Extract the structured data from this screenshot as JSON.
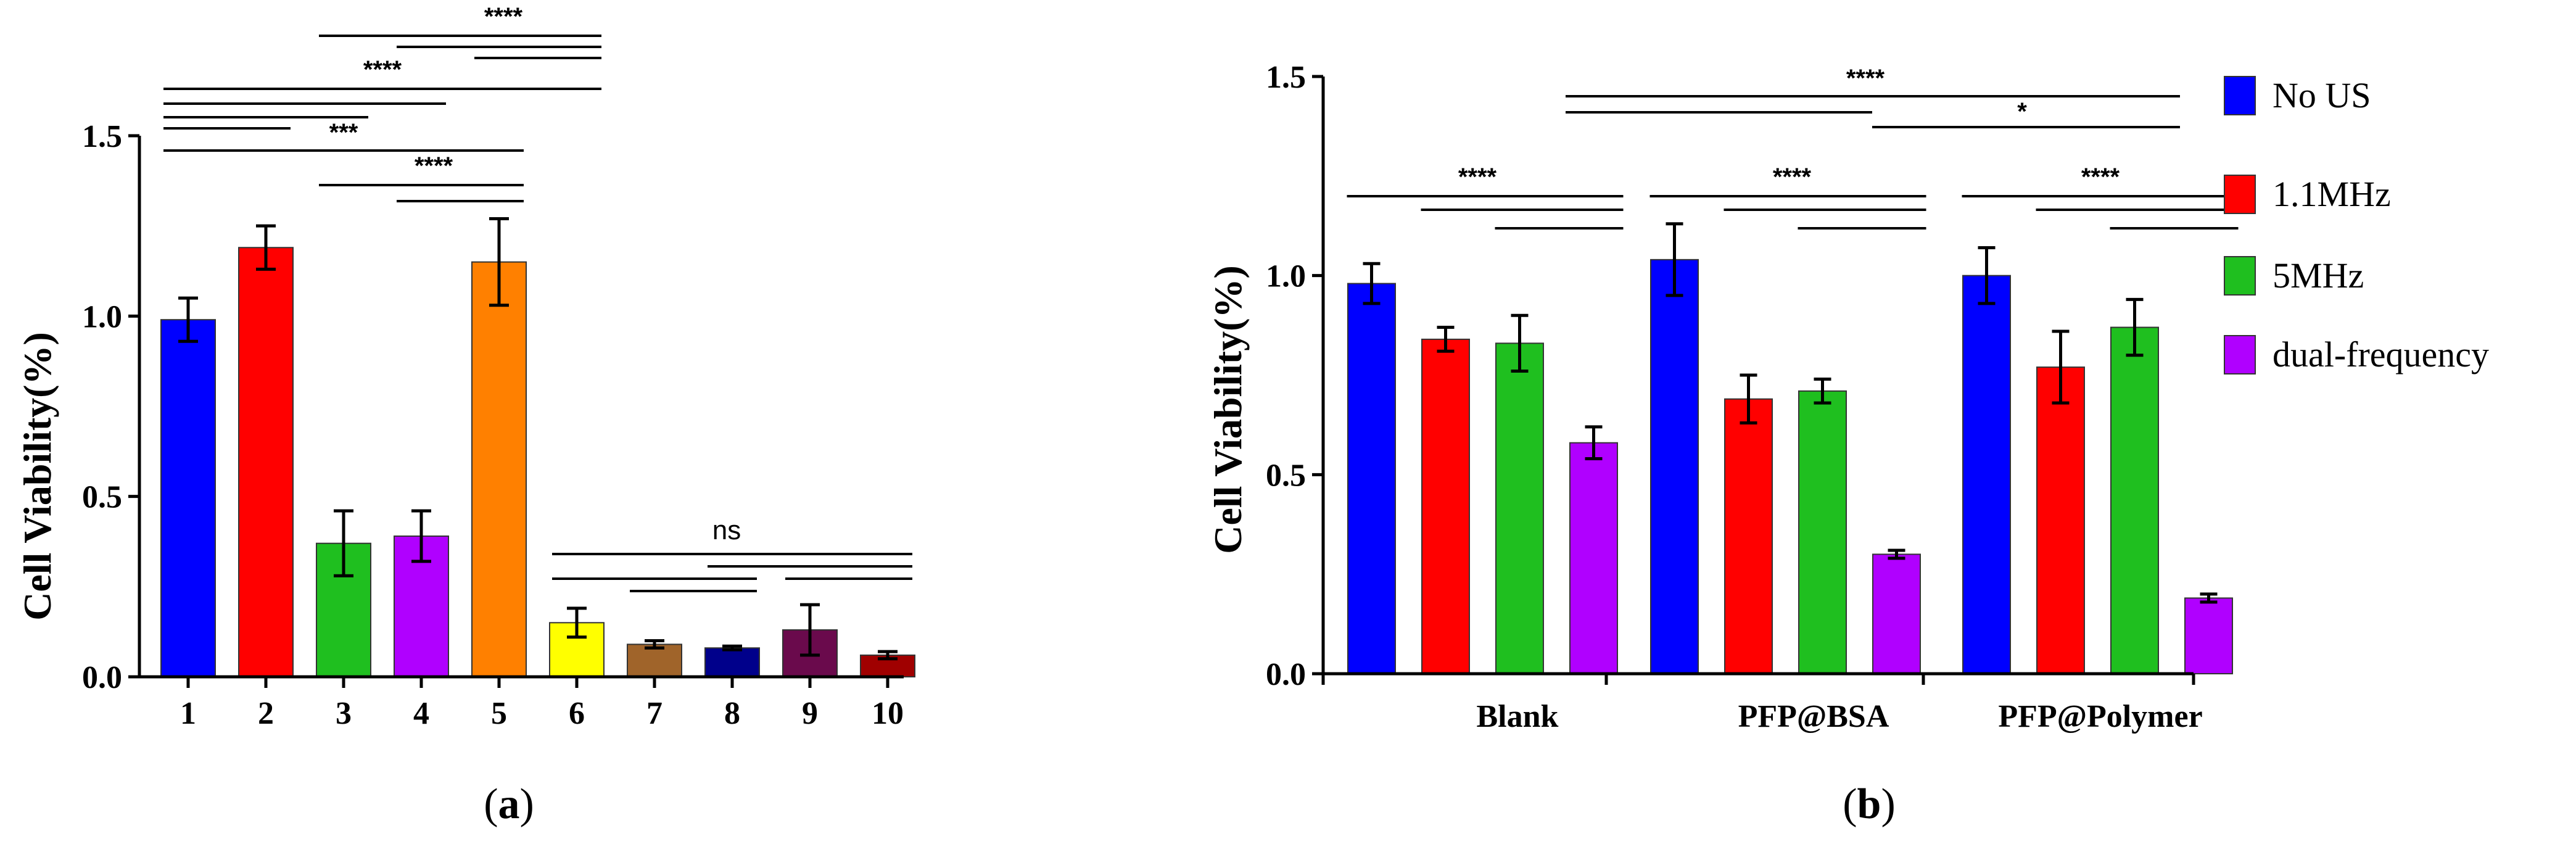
{
  "chart_data": [
    {
      "type": "bar",
      "panel": "a",
      "caption_letter": "a",
      "ylabel": "Cell Viability(%)",
      "xlabel": "",
      "ylim": [
        0,
        1.5
      ],
      "yticks": [
        0.0,
        0.5,
        1.0,
        1.5
      ],
      "ytick_labels": [
        "0.0",
        "0.5",
        "1.0",
        "1.5"
      ],
      "categories": [
        "1",
        "2",
        "3",
        "4",
        "5",
        "6",
        "7",
        "8",
        "9",
        "10"
      ],
      "values": [
        0.99,
        1.19,
        0.37,
        0.39,
        1.15,
        0.15,
        0.09,
        0.08,
        0.13,
        0.06
      ],
      "errors": [
        0.06,
        0.06,
        0.09,
        0.07,
        0.12,
        0.04,
        0.01,
        0.005,
        0.07,
        0.01
      ],
      "colors": [
        "#0000ff",
        "#ff0000",
        "#1fbf1f",
        "#b000ff",
        "#ff8000",
        "#ffff00",
        "#a0642a",
        "#00008b",
        "#6a0a4c",
        "#a00000"
      ],
      "significance": [
        {
          "label": "****",
          "brackets": [
            [
              3,
              6
            ],
            [
              4,
              6
            ],
            [
              5,
              6
            ]
          ]
        },
        {
          "label": "****",
          "brackets": [
            [
              1,
              6
            ],
            [
              1,
              4
            ],
            [
              1,
              3
            ],
            [
              1,
              2
            ]
          ]
        },
        {
          "label": "***",
          "brackets": [
            [
              1,
              5
            ]
          ]
        },
        {
          "label": "****",
          "brackets": [
            [
              3,
              5
            ],
            [
              4,
              5
            ]
          ]
        },
        {
          "label": "ns",
          "brackets": [
            [
              6,
              10
            ],
            [
              6,
              8
            ],
            [
              7,
              8
            ],
            [
              8,
              10
            ],
            [
              9,
              10
            ]
          ]
        }
      ]
    },
    {
      "type": "bar",
      "panel": "b",
      "caption_letter": "b",
      "ylabel": "Cell Viability(%)",
      "xlabel": "",
      "ylim": [
        0,
        1.5
      ],
      "yticks": [
        0.0,
        0.5,
        1.0,
        1.5
      ],
      "ytick_labels": [
        "0.0",
        "0.5",
        "1.0",
        "1.5"
      ],
      "categories": [
        "Blank",
        "PFP@BSA",
        "PFP@Polymer"
      ],
      "series": [
        {
          "name": "No US",
          "color": "#0000ff",
          "values": [
            0.98,
            1.04,
            1.0
          ],
          "errors": [
            0.05,
            0.09,
            0.07
          ]
        },
        {
          "name": "1.1MHz",
          "color": "#ff0000",
          "values": [
            0.84,
            0.69,
            0.77
          ],
          "errors": [
            0.03,
            0.06,
            0.09
          ]
        },
        {
          "name": "5MHz",
          "color": "#1fbf1f",
          "values": [
            0.83,
            0.71,
            0.87
          ],
          "errors": [
            0.07,
            0.03,
            0.07
          ]
        },
        {
          "name": "dual-frequency",
          "color": "#b000ff",
          "values": [
            0.58,
            0.3,
            0.19
          ],
          "errors": [
            0.04,
            0.01,
            0.01
          ]
        }
      ],
      "significance": [
        {
          "label": "****",
          "scope": "across groups"
        },
        {
          "label": "*",
          "scope": "PFP@BSA vs PFP@Polymer"
        },
        {
          "label": "****",
          "scope": "Blank"
        },
        {
          "label": "****",
          "scope": "PFP@BSA"
        },
        {
          "label": "****",
          "scope": "PFP@Polymer"
        }
      ]
    }
  ]
}
